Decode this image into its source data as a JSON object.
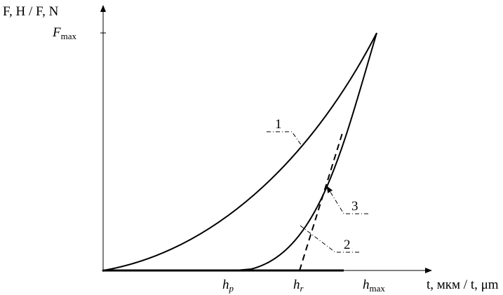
{
  "axes": {
    "y_label": "F, H / F, N",
    "x_label": "t, мкм / t, μm"
  },
  "y_marks": [
    {
      "symbol": "F",
      "subscript": "max"
    }
  ],
  "x_marks": [
    {
      "symbol": "h",
      "subscript": "p"
    },
    {
      "symbol": "h",
      "subscript": "r"
    },
    {
      "symbol": "h",
      "subscript": "max"
    }
  ],
  "curve_labels": [
    "1",
    "2",
    "3"
  ]
}
